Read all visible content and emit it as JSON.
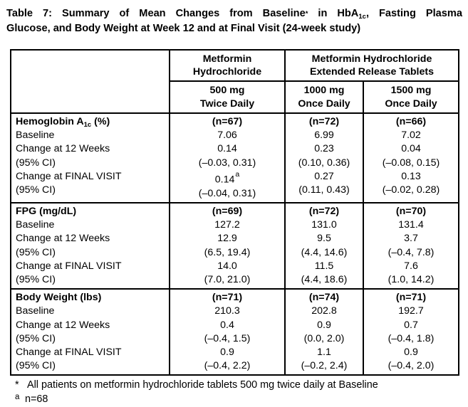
{
  "title": {
    "line1_pre": "Table 7:  Summary of Mean Changes from Baseline",
    "line1_sup": "*",
    "line1_mid": " in HbA",
    "line1_sub": "1c",
    "line1_post": ", Fasting Plasma",
    "line2": "Glucose, and Body Weight at Week 12 and at Final Visit (24-week study)"
  },
  "table": {
    "header": {
      "col_group_single": "Metformin\nHydrochloride",
      "col_group_er": "Metformin Hydrochloride\nExtended Release Tablets",
      "doses": [
        "500 mg\nTwice Daily",
        "1000 mg\nOnce Daily",
        "1500 mg\nOnce Daily"
      ]
    },
    "row_labels": [
      "Baseline",
      "Change at 12 Weeks",
      "(95% CI)",
      "Change at FINAL VISIT",
      "(95% CI)"
    ],
    "sections": [
      {
        "label_pre": "Hemoglobin A",
        "label_sub": "1c",
        "label_post": " (%)",
        "cols": [
          {
            "n": "(n=67)",
            "v": [
              "7.06",
              "0.14",
              "(–0.03, 0.31)",
              "0.14",
              "(–0.04, 0.31)"
            ],
            "v3_sup": "a"
          },
          {
            "n": "(n=72)",
            "v": [
              "6.99",
              "0.23",
              "(0.10, 0.36)",
              "0.27",
              "(0.11, 0.43)"
            ]
          },
          {
            "n": "(n=66)",
            "v": [
              "7.02",
              "0.04",
              "(–0.08, 0.15)",
              "0.13",
              "(–0.02, 0.28)"
            ]
          }
        ]
      },
      {
        "label_pre": "FPG (mg/dL)",
        "label_sub": "",
        "label_post": "",
        "cols": [
          {
            "n": "(n=69)",
            "v": [
              "127.2",
              "12.9",
              "(6.5, 19.4)",
              "14.0",
              "(7.0, 21.0)"
            ]
          },
          {
            "n": "(n=72)",
            "v": [
              "131.0",
              "9.5",
              "(4.4, 14.6)",
              "11.5",
              "(4.4, 18.6)"
            ]
          },
          {
            "n": "(n=70)",
            "v": [
              "131.4",
              "3.7",
              "(–0.4, 7.8)",
              "7.6",
              "(1.0, 14.2)"
            ]
          }
        ]
      },
      {
        "label_pre": "Body Weight (lbs)",
        "label_sub": "",
        "label_post": "",
        "cols": [
          {
            "n": "(n=71)",
            "v": [
              "210.3",
              "0.4",
              "(–0.4, 1.5)",
              "0.9",
              "(–0.4, 2.2)"
            ]
          },
          {
            "n": "(n=74)",
            "v": [
              "202.8",
              "0.9",
              "(0.0, 2.0)",
              "1.1",
              "(–0.2, 2.4)"
            ]
          },
          {
            "n": "(n=71)",
            "v": [
              "192.7",
              "0.7",
              "(–0.4, 1.8)",
              "0.9",
              "(–0.4, 2.0)"
            ]
          }
        ]
      }
    ]
  },
  "footnotes": [
    {
      "marker": "*",
      "text": "All patients on metformin hydrochloride tablets 500 mg twice daily at Baseline"
    },
    {
      "marker": "a",
      "text": "n=68"
    }
  ]
}
